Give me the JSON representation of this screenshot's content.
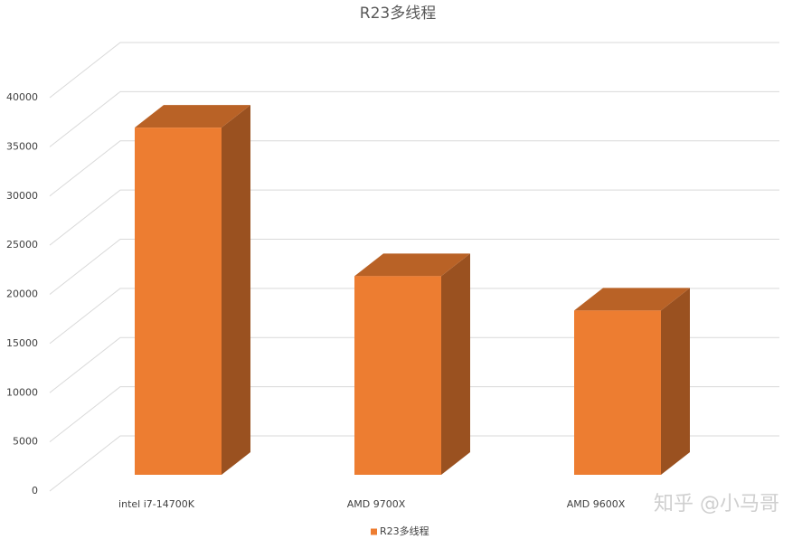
{
  "chart_data": {
    "type": "bar3d",
    "title": "R23多线程",
    "categories": [
      "intel i7-14700K",
      "AMD 9700X",
      "AMD 9600X"
    ],
    "series": [
      {
        "name": "R23多线程",
        "color": "#ed7d31",
        "values": [
          35300,
          20200,
          16700
        ]
      }
    ],
    "ylim": [
      0,
      40000
    ],
    "yticks": [
      0,
      5000,
      10000,
      15000,
      20000,
      25000,
      30000,
      35000,
      40000
    ],
    "grid": true,
    "legend": "bottom",
    "watermark": "知乎 @小马哥"
  }
}
